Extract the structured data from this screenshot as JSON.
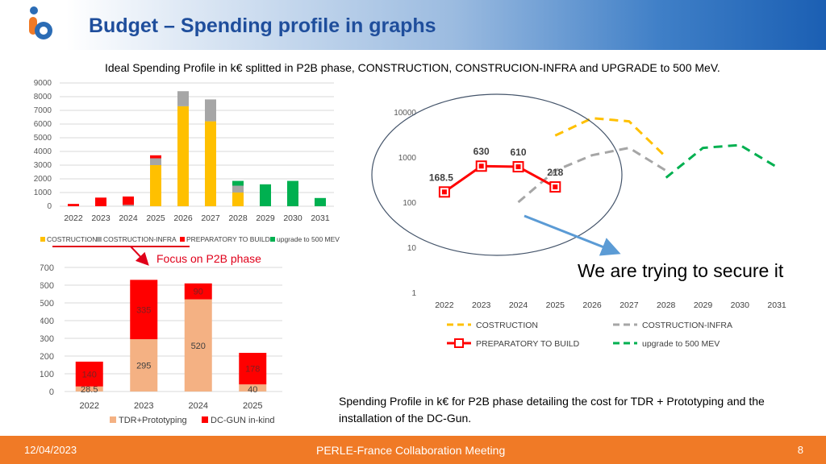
{
  "slide": {
    "title": "Budget – Spending profile in graphs",
    "subtitle": "Ideal Spending Profile in k€ splitted in P2B phase, CONSTRUCTION, CONSTRUCION-INFRA and UPGRADE to 500 MeV.",
    "focus_label": "Focus on P2B phase",
    "secure_note": "We are trying to secure it",
    "bottom_note": "Spending Profile in k€ for P2B phase detailing the cost for TDR + Prototyping and the installation of the DC-Gun."
  },
  "footer": {
    "date": "12/04/2023",
    "center": "PERLE-France Collaboration Meeting",
    "page": "8"
  },
  "colors": {
    "header_title": "#1f4e9c",
    "footer_bg": "#f07a26",
    "construction": "#ffc000",
    "infra": "#a6a6a6",
    "preparatory": "#ff0000",
    "upgrade": "#00b050",
    "tdr": "#f4b183",
    "dcgun": "#ff0000",
    "focus_arrow": "#e0001a",
    "trend_arrow": "#5b9bd5"
  },
  "chart_data": [
    {
      "type": "bar",
      "stacked": true,
      "categories": [
        "2022",
        "2023",
        "2024",
        "2025",
        "2026",
        "2027",
        "2028",
        "2029",
        "2030",
        "2031"
      ],
      "ylim": [
        0,
        9000
      ],
      "yticks": [
        "0",
        "1000",
        "2000",
        "3000",
        "4000",
        "5000",
        "6000",
        "7000",
        "8000",
        "9000"
      ],
      "legend_position": "bottom",
      "series": [
        {
          "name": "COSTRUCTION",
          "color": "#ffc000",
          "values": [
            0,
            0,
            0,
            3000,
            7300,
            6200,
            1000,
            0,
            0,
            0
          ]
        },
        {
          "name": "COSTRUCTION-INFRA",
          "color": "#a6a6a6",
          "values": [
            0,
            0,
            100,
            500,
            1100,
            1600,
            500,
            0,
            0,
            0
          ]
        },
        {
          "name": "PREPARATORY TO BUILD",
          "color": "#ff0000",
          "values": [
            168.5,
            630,
            610,
            218,
            0,
            0,
            0,
            0,
            0,
            0
          ]
        },
        {
          "name": "upgrade to 500 MEV",
          "color": "#00b050",
          "values": [
            0,
            0,
            0,
            0,
            0,
            0,
            350,
            1600,
            1850,
            600
          ]
        }
      ]
    },
    {
      "type": "bar",
      "stacked": true,
      "categories": [
        "2022",
        "2023",
        "2024",
        "2025"
      ],
      "ylim": [
        0,
        700
      ],
      "yticks": [
        "0",
        "100",
        "200",
        "300",
        "400",
        "500",
        "600",
        "700"
      ],
      "legend_position": "bottom",
      "series": [
        {
          "name": "TDR+Prototyping",
          "color": "#f4b183",
          "values": [
            28.5,
            295,
            520,
            40
          ],
          "labels": [
            "28.5",
            "295",
            "520",
            "40"
          ]
        },
        {
          "name": "DC-GUN in-kind",
          "color": "#ff0000",
          "values": [
            140,
            335,
            90,
            178
          ],
          "labels": [
            "140",
            "335",
            "90",
            "178"
          ]
        }
      ]
    },
    {
      "type": "line",
      "log_y": true,
      "categories": [
        "2022",
        "2023",
        "2024",
        "2025",
        "2026",
        "2027",
        "2028",
        "2029",
        "2030",
        "2031"
      ],
      "ylim": [
        1,
        10000
      ],
      "yticks": [
        "1",
        "10",
        "100",
        "1000",
        "10000"
      ],
      "legend_position": "bottom",
      "series": [
        {
          "name": "COSTRUCTION",
          "color": "#ffc000",
          "dash": "dashed",
          "values": [
            null,
            null,
            null,
            3000,
            7300,
            6200,
            1000,
            null,
            null,
            null
          ]
        },
        {
          "name": "COSTRUCTION-INFRA",
          "color": "#a6a6a6",
          "dash": "dashed",
          "values": [
            null,
            null,
            100,
            500,
            1100,
            1600,
            500,
            null,
            null,
            null
          ]
        },
        {
          "name": "PREPARATORY TO BUILD",
          "color": "#ff0000",
          "dash": "solid",
          "markers": true,
          "values": [
            168.5,
            630,
            610,
            218,
            null,
            null,
            null,
            null,
            null,
            null
          ],
          "labels": [
            "168.5",
            "630",
            "610",
            "218"
          ]
        },
        {
          "name": "upgrade to 500 MEV",
          "color": "#00b050",
          "dash": "dashed",
          "values": [
            null,
            null,
            null,
            null,
            null,
            null,
            350,
            1600,
            1850,
            600
          ]
        }
      ]
    }
  ]
}
